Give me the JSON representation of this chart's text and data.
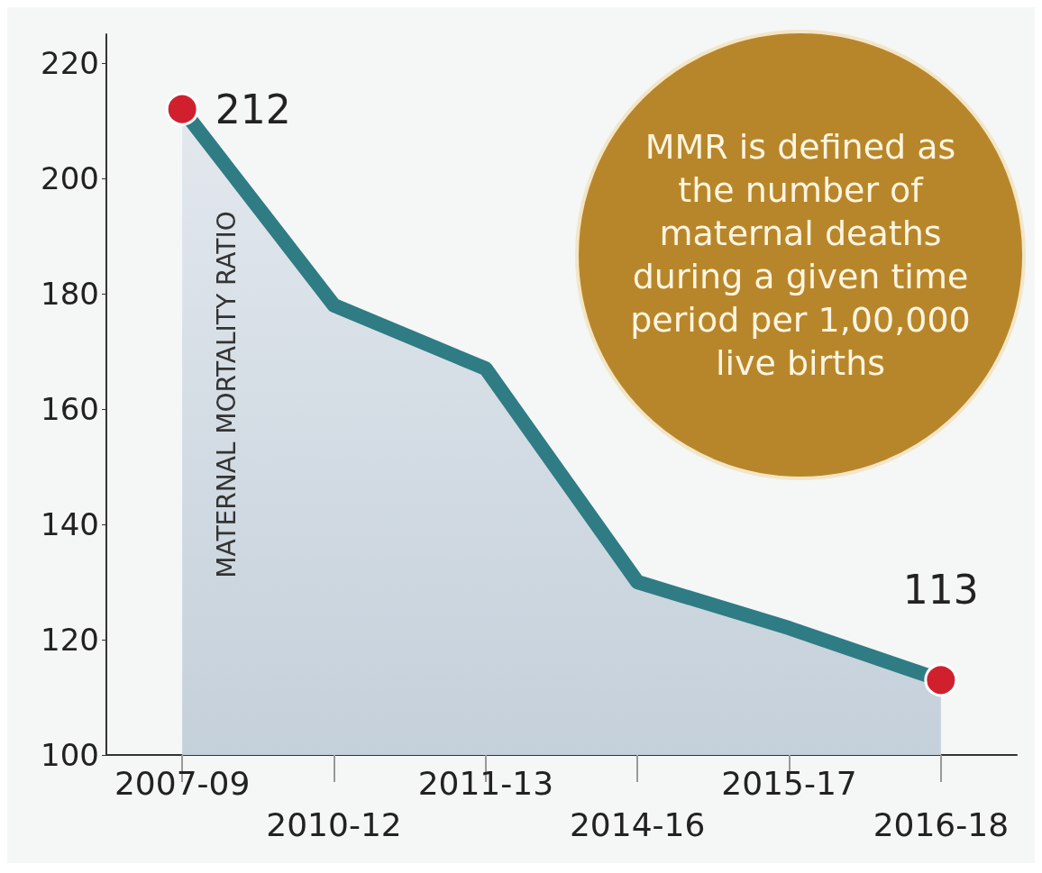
{
  "chart_data": {
    "type": "area",
    "ylabel": "MATERNAL MORTALITY RATIO",
    "categories": [
      "2007-09",
      "2010-12",
      "2011-13",
      "2014-16",
      "2015-17",
      "2016-18"
    ],
    "series": [
      {
        "color": "#2f7c84",
        "values": [
          212,
          178,
          167,
          130,
          122,
          113
        ],
        "value_labels": [
          "212",
          null,
          null,
          null,
          null,
          "113"
        ]
      }
    ],
    "ylim": [
      100,
      225
    ],
    "yticks": [
      100,
      120,
      140,
      160,
      180,
      200,
      220
    ],
    "grid": false,
    "annotations": [
      "MMR is defined as the number of maternal deaths during a given time period per 1,00,000 live births"
    ]
  }
}
